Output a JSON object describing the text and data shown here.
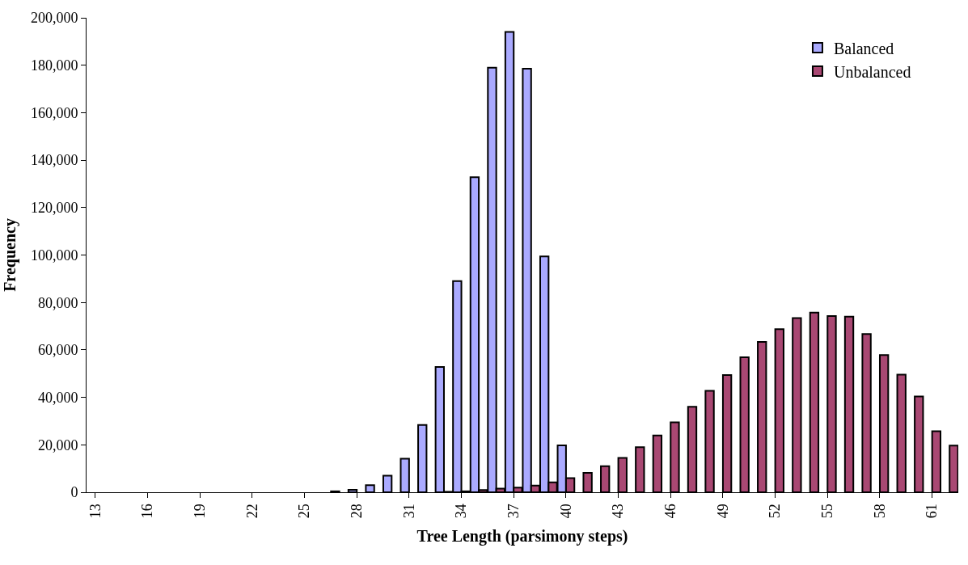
{
  "chart_data": {
    "type": "bar",
    "xlabel": "Tree Length (parsimony steps)",
    "ylabel": "Frequency",
    "categories": [
      "13",
      null,
      null,
      "16",
      null,
      null,
      "19",
      null,
      null,
      "22",
      null,
      null,
      "25",
      null,
      null,
      "28",
      null,
      null,
      "31",
      null,
      null,
      "34",
      null,
      null,
      "37",
      null,
      null,
      "40",
      null,
      null,
      "43",
      null,
      null,
      "46",
      null,
      null,
      "49",
      null,
      null,
      "52",
      null,
      null,
      "55",
      null,
      null,
      "58",
      null,
      null,
      "61",
      null
    ],
    "series": [
      {
        "name": "Balanced",
        "color": "#aaaaff",
        "values": [
          null,
          null,
          null,
          null,
          null,
          null,
          null,
          null,
          null,
          null,
          null,
          null,
          null,
          null,
          400,
          1000,
          3000,
          7000,
          14100,
          28400,
          52800,
          89000,
          132800,
          179000,
          194000,
          178500,
          99400,
          19800,
          null,
          null,
          null,
          null,
          null,
          null,
          null,
          null,
          null,
          null,
          null,
          null,
          null,
          null,
          null,
          null,
          null,
          null,
          null,
          null,
          null,
          null
        ]
      },
      {
        "name": "Unbalanced",
        "color": "#a94873",
        "values": [
          null,
          null,
          null,
          null,
          null,
          null,
          null,
          null,
          null,
          null,
          null,
          null,
          null,
          null,
          null,
          null,
          null,
          null,
          null,
          null,
          200,
          400,
          900,
          1500,
          2000,
          2800,
          4200,
          6000,
          8200,
          11000,
          14500,
          19000,
          23900,
          29500,
          36000,
          42800,
          49400,
          56900,
          63400,
          68700,
          73400,
          75700,
          74300,
          74000,
          66700,
          57800,
          49600,
          40400,
          25700,
          19700
        ]
      }
    ],
    "ylim": [
      0,
      200000
    ],
    "yticks": [
      {
        "value": 0,
        "label": "0"
      },
      {
        "value": 20000,
        "label": "20,000"
      },
      {
        "value": 40000,
        "label": "40,000"
      },
      {
        "value": 60000,
        "label": "60,000"
      },
      {
        "value": 80000,
        "label": "80,000"
      },
      {
        "value": 100000,
        "label": "100,000"
      },
      {
        "value": 120000,
        "label": "120,000"
      },
      {
        "value": 140000,
        "label": "140,000"
      },
      {
        "value": 160000,
        "label": "160,000"
      },
      {
        "value": 180000,
        "label": "180,000"
      },
      {
        "value": 200000,
        "label": "200,000"
      }
    ],
    "grid": false,
    "legend": "top right"
  }
}
